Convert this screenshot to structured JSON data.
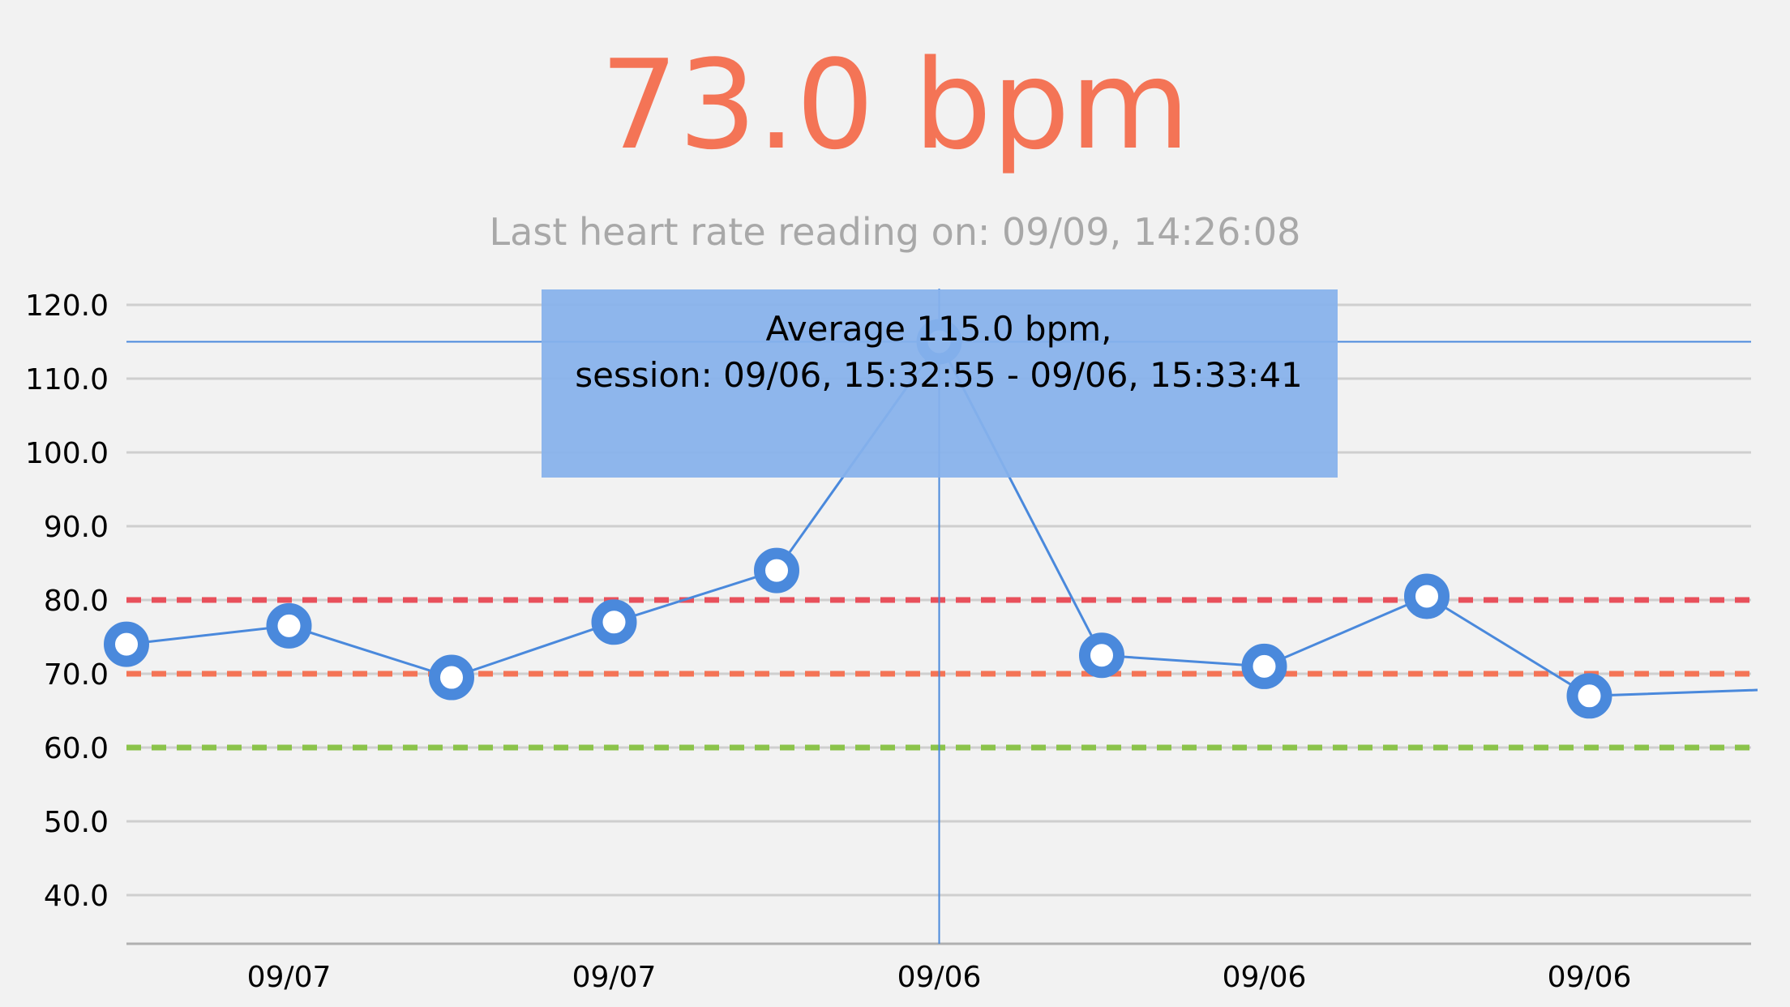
{
  "header": {
    "bpm_value": "73.0 bpm",
    "last_reading": "Last heart rate reading on: 09/09, 14:26:08"
  },
  "tooltip": {
    "line1": "Average 115.0 bpm,",
    "line2": "session: 09/06, 15:32:55 - 09/06, 15:33:41",
    "selected_index": 5
  },
  "colors": {
    "value_text": "#f47456",
    "subtitle_text": "#a8a8a8",
    "series_line": "#4a89dc",
    "tooltip_bg": "#86b2ec",
    "grid": "#cfcfcf",
    "axis": "#b0b0b0",
    "limit_high": "#e8505b",
    "limit_mid": "#f47456",
    "limit_low": "#8bc34a"
  },
  "chart_data": {
    "type": "line",
    "x_tick_labels": [
      "09/07",
      "09/07",
      "09/06",
      "09/06",
      "09/06"
    ],
    "x_tick_indices": [
      1,
      3,
      5,
      7,
      9
    ],
    "y_tick_labels": [
      "120.0",
      "110.0",
      "100.0",
      "90.0",
      "80.0",
      "70.0",
      "60.0",
      "50.0",
      "40.0"
    ],
    "y_ticks": [
      120,
      110,
      100,
      90,
      80,
      70,
      60,
      50,
      40
    ],
    "ylim": [
      33.5,
      120
    ],
    "series": [
      {
        "values": [
          74.0,
          76.5,
          69.5,
          77.0,
          84.0,
          115.0,
          72.5,
          71.0,
          80.5,
          67.0,
          67.8
        ],
        "marker_count": 10
      }
    ],
    "limit_lines": [
      {
        "value": 80,
        "color": "#e8505b"
      },
      {
        "value": 70,
        "color": "#f47456"
      },
      {
        "value": 60,
        "color": "#8bc34a"
      }
    ],
    "selected_value": 115.0,
    "grid": true
  }
}
